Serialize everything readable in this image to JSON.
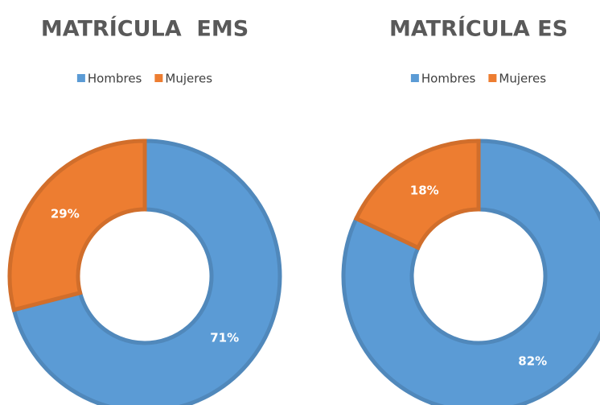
{
  "chart_data": [
    {
      "type": "donut",
      "title": "MATRÍCULA  EMS",
      "categories": [
        "Hombres",
        "Mujeres"
      ],
      "values": [
        71,
        29
      ],
      "value_labels": [
        "71%",
        "29%"
      ],
      "colors": [
        "#5b9bd5",
        "#ed7d31"
      ]
    },
    {
      "type": "donut",
      "title": "MATRÍCULA ES",
      "categories": [
        "Hombres",
        "Mujeres"
      ],
      "values": [
        82,
        18
      ],
      "value_labels": [
        "82%",
        "18%"
      ],
      "colors": [
        "#5b9bd5",
        "#ed7d31"
      ]
    }
  ]
}
